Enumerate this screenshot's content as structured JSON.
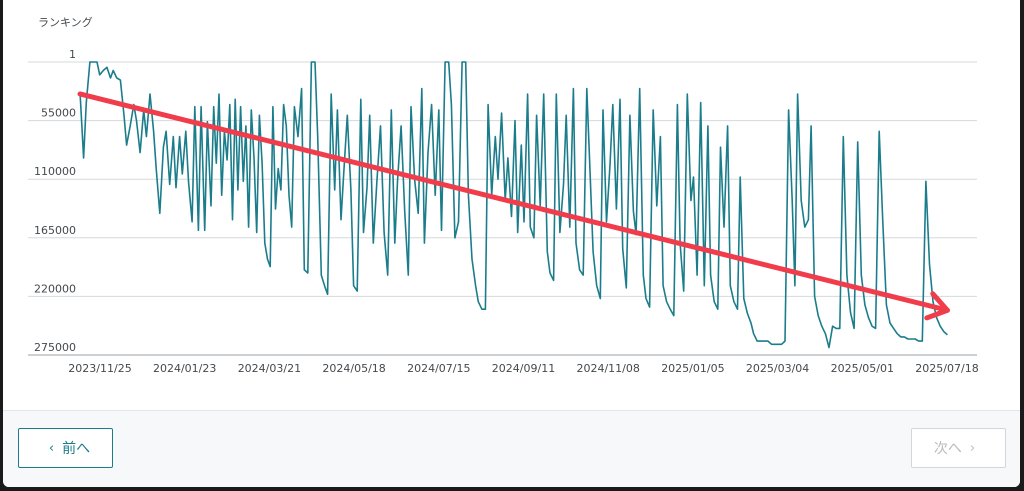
{
  "chart_data": {
    "type": "line",
    "ylabel": "ランキング",
    "y_ticks": [
      1,
      55000,
      110000,
      165000,
      220000,
      275000
    ],
    "y_tick_labels": [
      "1",
      "55000",
      "110000",
      "165000",
      "220000",
      "275000"
    ],
    "ylim": [
      1,
      275000
    ],
    "y_inverted": true,
    "x_tick_labels": [
      "2023/11/25",
      "2024/01/23",
      "2024/03/21",
      "2024/05/18",
      "2024/07/15",
      "2024/09/11",
      "2024/11/08",
      "2025/01/05",
      "2025/03/04",
      "2025/05/01",
      "2025/07/18"
    ],
    "grid": true,
    "series_color": "#1b7d8b",
    "trend_arrow_color": "#f03c4b",
    "series": [
      {
        "points": [
          [
            0.0,
            28000
          ],
          [
            0.004,
            90000
          ],
          [
            0.007,
            38000
          ],
          [
            0.011,
            1
          ],
          [
            0.015,
            1
          ],
          [
            0.019,
            1
          ],
          [
            0.022,
            12000
          ],
          [
            0.026,
            8000
          ],
          [
            0.03,
            5000
          ],
          [
            0.034,
            15000
          ],
          [
            0.037,
            8000
          ],
          [
            0.041,
            15000
          ],
          [
            0.045,
            17000
          ],
          [
            0.049,
            50000
          ],
          [
            0.052,
            78000
          ],
          [
            0.056,
            60000
          ],
          [
            0.06,
            40000
          ],
          [
            0.063,
            55000
          ],
          [
            0.067,
            85000
          ],
          [
            0.071,
            45000
          ],
          [
            0.074,
            70000
          ],
          [
            0.078,
            30000
          ],
          [
            0.082,
            65000
          ],
          [
            0.085,
            100000
          ],
          [
            0.089,
            142000
          ],
          [
            0.093,
            80000
          ],
          [
            0.096,
            65000
          ],
          [
            0.1,
            115000
          ],
          [
            0.104,
            70000
          ],
          [
            0.107,
            118000
          ],
          [
            0.111,
            70000
          ],
          [
            0.114,
            105000
          ],
          [
            0.118,
            65000
          ],
          [
            0.121,
            112000
          ],
          [
            0.125,
            150000
          ],
          [
            0.128,
            42000
          ],
          [
            0.132,
            158000
          ],
          [
            0.135,
            42000
          ],
          [
            0.139,
            158000
          ],
          [
            0.142,
            56000
          ],
          [
            0.146,
            135000
          ],
          [
            0.149,
            42000
          ],
          [
            0.152,
            95000
          ],
          [
            0.155,
            30000
          ],
          [
            0.158,
            125000
          ],
          [
            0.161,
            65000
          ],
          [
            0.164,
            92000
          ],
          [
            0.167,
            40000
          ],
          [
            0.17,
            148000
          ],
          [
            0.173,
            35000
          ],
          [
            0.176,
            120000
          ],
          [
            0.179,
            42000
          ],
          [
            0.182,
            112000
          ],
          [
            0.185,
            60000
          ],
          [
            0.188,
            155000
          ],
          [
            0.191,
            45000
          ],
          [
            0.194,
            90000
          ],
          [
            0.197,
            160000
          ],
          [
            0.2,
            50000
          ],
          [
            0.203,
            95000
          ],
          [
            0.206,
            170000
          ],
          [
            0.209,
            185000
          ],
          [
            0.212,
            192000
          ],
          [
            0.215,
            42000
          ],
          [
            0.218,
            138000
          ],
          [
            0.221,
            100000
          ],
          [
            0.224,
            120000
          ],
          [
            0.227,
            40000
          ],
          [
            0.23,
            60000
          ],
          [
            0.233,
            125000
          ],
          [
            0.236,
            155000
          ],
          [
            0.239,
            42000
          ],
          [
            0.243,
            70000
          ],
          [
            0.247,
            25000
          ],
          [
            0.25,
            195000
          ],
          [
            0.254,
            198000
          ],
          [
            0.258,
            1
          ],
          [
            0.262,
            1
          ],
          [
            0.265,
            70000
          ],
          [
            0.269,
            200000
          ],
          [
            0.273,
            211000
          ],
          [
            0.276,
            218000
          ],
          [
            0.28,
            30000
          ],
          [
            0.284,
            120000
          ],
          [
            0.287,
            45000
          ],
          [
            0.291,
            148000
          ],
          [
            0.294,
            105000
          ],
          [
            0.298,
            50000
          ],
          [
            0.302,
            120000
          ],
          [
            0.305,
            210000
          ],
          [
            0.309,
            215000
          ],
          [
            0.313,
            35000
          ],
          [
            0.316,
            160000
          ],
          [
            0.32,
            118000
          ],
          [
            0.323,
            50000
          ],
          [
            0.327,
            170000
          ],
          [
            0.331,
            112000
          ],
          [
            0.335,
            60000
          ],
          [
            0.339,
            160000
          ],
          [
            0.343,
            200000
          ],
          [
            0.347,
            45000
          ],
          [
            0.351,
            170000
          ],
          [
            0.354,
            112000
          ],
          [
            0.358,
            60000
          ],
          [
            0.362,
            140000
          ],
          [
            0.366,
            200000
          ],
          [
            0.369,
            42000
          ],
          [
            0.373,
            110000
          ],
          [
            0.377,
            142000
          ],
          [
            0.381,
            25000
          ],
          [
            0.384,
            170000
          ],
          [
            0.388,
            85000
          ],
          [
            0.392,
            40000
          ],
          [
            0.396,
            125000
          ],
          [
            0.4,
            45000
          ],
          [
            0.403,
            158000
          ],
          [
            0.407,
            1
          ],
          [
            0.411,
            1
          ],
          [
            0.414,
            40000
          ],
          [
            0.418,
            165000
          ],
          [
            0.422,
            150000
          ],
          [
            0.426,
            1
          ],
          [
            0.43,
            1
          ],
          [
            0.433,
            125000
          ],
          [
            0.437,
            185000
          ],
          [
            0.441,
            210000
          ],
          [
            0.444,
            225000
          ],
          [
            0.448,
            232000
          ],
          [
            0.452,
            232000
          ],
          [
            0.455,
            40000
          ],
          [
            0.459,
            125000
          ],
          [
            0.463,
            70000
          ],
          [
            0.466,
            110000
          ],
          [
            0.47,
            48000
          ],
          [
            0.474,
            130000
          ],
          [
            0.477,
            90000
          ],
          [
            0.481,
            145000
          ],
          [
            0.485,
            55000
          ],
          [
            0.488,
            160000
          ],
          [
            0.492,
            78000
          ],
          [
            0.495,
            150000
          ],
          [
            0.499,
            30000
          ],
          [
            0.502,
            155000
          ],
          [
            0.506,
            165000
          ],
          [
            0.509,
            50000
          ],
          [
            0.513,
            135000
          ],
          [
            0.517,
            30000
          ],
          [
            0.521,
            178000
          ],
          [
            0.524,
            198000
          ],
          [
            0.528,
            205000
          ],
          [
            0.531,
            30000
          ],
          [
            0.535,
            160000
          ],
          [
            0.539,
            115000
          ],
          [
            0.542,
            50000
          ],
          [
            0.546,
            155000
          ],
          [
            0.55,
            25000
          ],
          [
            0.553,
            170000
          ],
          [
            0.557,
            195000
          ],
          [
            0.561,
            200000
          ],
          [
            0.565,
            25000
          ],
          [
            0.568,
            90000
          ],
          [
            0.572,
            178000
          ],
          [
            0.576,
            210000
          ],
          [
            0.58,
            222000
          ],
          [
            0.583,
            45000
          ],
          [
            0.587,
            150000
          ],
          [
            0.591,
            95000
          ],
          [
            0.594,
            40000
          ],
          [
            0.598,
            138000
          ],
          [
            0.602,
            35000
          ],
          [
            0.605,
            175000
          ],
          [
            0.609,
            212000
          ],
          [
            0.613,
            50000
          ],
          [
            0.617,
            140000
          ],
          [
            0.62,
            162000
          ],
          [
            0.624,
            25000
          ],
          [
            0.628,
            200000
          ],
          [
            0.631,
            222000
          ],
          [
            0.635,
            230000
          ],
          [
            0.639,
            45000
          ],
          [
            0.643,
            135000
          ],
          [
            0.647,
            70000
          ],
          [
            0.65,
            210000
          ],
          [
            0.654,
            225000
          ],
          [
            0.658,
            232000
          ],
          [
            0.662,
            238000
          ],
          [
            0.666,
            40000
          ],
          [
            0.669,
            170000
          ],
          [
            0.673,
            215000
          ],
          [
            0.677,
            30000
          ],
          [
            0.681,
            130000
          ],
          [
            0.684,
            108000
          ],
          [
            0.688,
            200000
          ],
          [
            0.692,
            38000
          ],
          [
            0.696,
            210000
          ],
          [
            0.7,
            60000
          ],
          [
            0.703,
            200000
          ],
          [
            0.707,
            225000
          ],
          [
            0.711,
            232000
          ],
          [
            0.714,
            80000
          ],
          [
            0.718,
            155000
          ],
          [
            0.722,
            60000
          ],
          [
            0.725,
            210000
          ],
          [
            0.729,
            225000
          ],
          [
            0.733,
            232000
          ],
          [
            0.736,
            108000
          ],
          [
            0.74,
            222000
          ],
          [
            0.744,
            236000
          ],
          [
            0.748,
            245000
          ],
          [
            0.751,
            255000
          ],
          [
            0.755,
            262000
          ],
          [
            0.759,
            262000
          ],
          [
            0.763,
            262000
          ],
          [
            0.767,
            262000
          ],
          [
            0.771,
            265000
          ],
          [
            0.775,
            265000
          ],
          [
            0.779,
            265000
          ],
          [
            0.782,
            265000
          ],
          [
            0.786,
            262000
          ],
          [
            0.79,
            45000
          ],
          [
            0.794,
            130000
          ],
          [
            0.797,
            210000
          ],
          [
            0.8,
            30000
          ],
          [
            0.804,
            130000
          ],
          [
            0.808,
            155000
          ],
          [
            0.812,
            148000
          ],
          [
            0.815,
            60000
          ],
          [
            0.819,
            220000
          ],
          [
            0.823,
            238000
          ],
          [
            0.827,
            248000
          ],
          [
            0.831,
            255000
          ],
          [
            0.835,
            268000
          ],
          [
            0.839,
            248000
          ],
          [
            0.843,
            250000
          ],
          [
            0.847,
            250000
          ],
          [
            0.851,
            70000
          ],
          [
            0.855,
            200000
          ],
          [
            0.859,
            235000
          ],
          [
            0.863,
            250000
          ],
          [
            0.867,
            75000
          ],
          [
            0.871,
            200000
          ],
          [
            0.875,
            228000
          ],
          [
            0.879,
            240000
          ],
          [
            0.883,
            248000
          ],
          [
            0.887,
            250000
          ],
          [
            0.891,
            65000
          ],
          [
            0.895,
            150000
          ],
          [
            0.899,
            228000
          ],
          [
            0.903,
            245000
          ],
          [
            0.907,
            250000
          ],
          [
            0.911,
            255000
          ],
          [
            0.915,
            258000
          ],
          [
            0.919,
            258000
          ],
          [
            0.923,
            260000
          ],
          [
            0.927,
            260000
          ],
          [
            0.931,
            260000
          ],
          [
            0.935,
            262000
          ],
          [
            0.939,
            262000
          ],
          [
            0.943,
            112000
          ],
          [
            0.947,
            190000
          ],
          [
            0.951,
            225000
          ],
          [
            0.955,
            240000
          ],
          [
            0.959,
            248000
          ],
          [
            0.963,
            253000
          ],
          [
            0.967,
            256000
          ]
        ]
      }
    ],
    "trend_arrow": {
      "from": [
        0.0,
        30000
      ],
      "to": [
        0.967,
        233000
      ]
    }
  },
  "buttons": {
    "prev_label": "前へ",
    "prev_icon": "‹",
    "next_label": "次へ",
    "next_icon": "›"
  }
}
